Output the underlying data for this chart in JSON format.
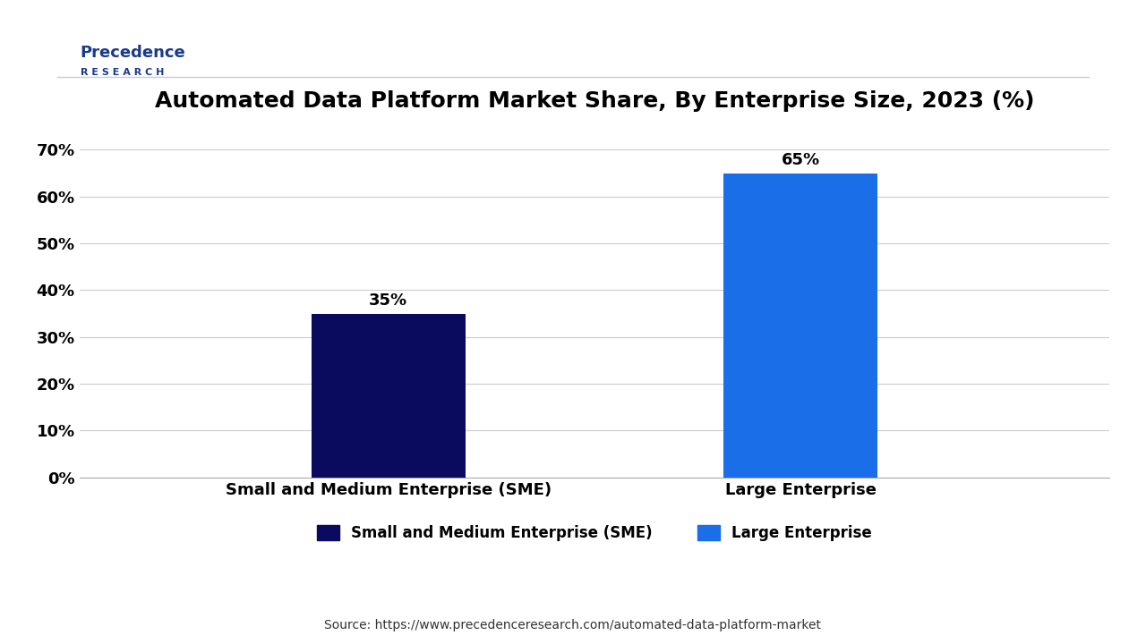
{
  "title": "Automated Data Platform Market Share, By Enterprise Size, 2023 (%)",
  "categories": [
    "Small and Medium Enterprise (SME)",
    "Large Enterprise"
  ],
  "values": [
    35,
    65
  ],
  "bar_colors": [
    "#0a0a5e",
    "#1a6fe8"
  ],
  "value_labels": [
    "35%",
    "65%"
  ],
  "yticks": [
    0,
    10,
    20,
    30,
    40,
    50,
    60,
    70
  ],
  "ytick_labels": [
    "0%",
    "10%",
    "20%",
    "30%",
    "40%",
    "50%",
    "60%",
    "70%"
  ],
  "ylim": [
    0,
    75
  ],
  "legend_labels": [
    "Small and Medium Enterprise (SME)",
    "Large Enterprise"
  ],
  "legend_colors": [
    "#0a0a5e",
    "#1a6fe8"
  ],
  "source_text": "Source: https://www.precedenceresearch.com/automated-data-platform-market",
  "background_color": "#ffffff",
  "title_fontsize": 18,
  "tick_fontsize": 13,
  "bar_label_fontsize": 13,
  "legend_fontsize": 12,
  "source_fontsize": 10,
  "xlabel_fontsize": 13,
  "logo_text1": "Precedence",
  "logo_text2": "R E S E A R C H"
}
